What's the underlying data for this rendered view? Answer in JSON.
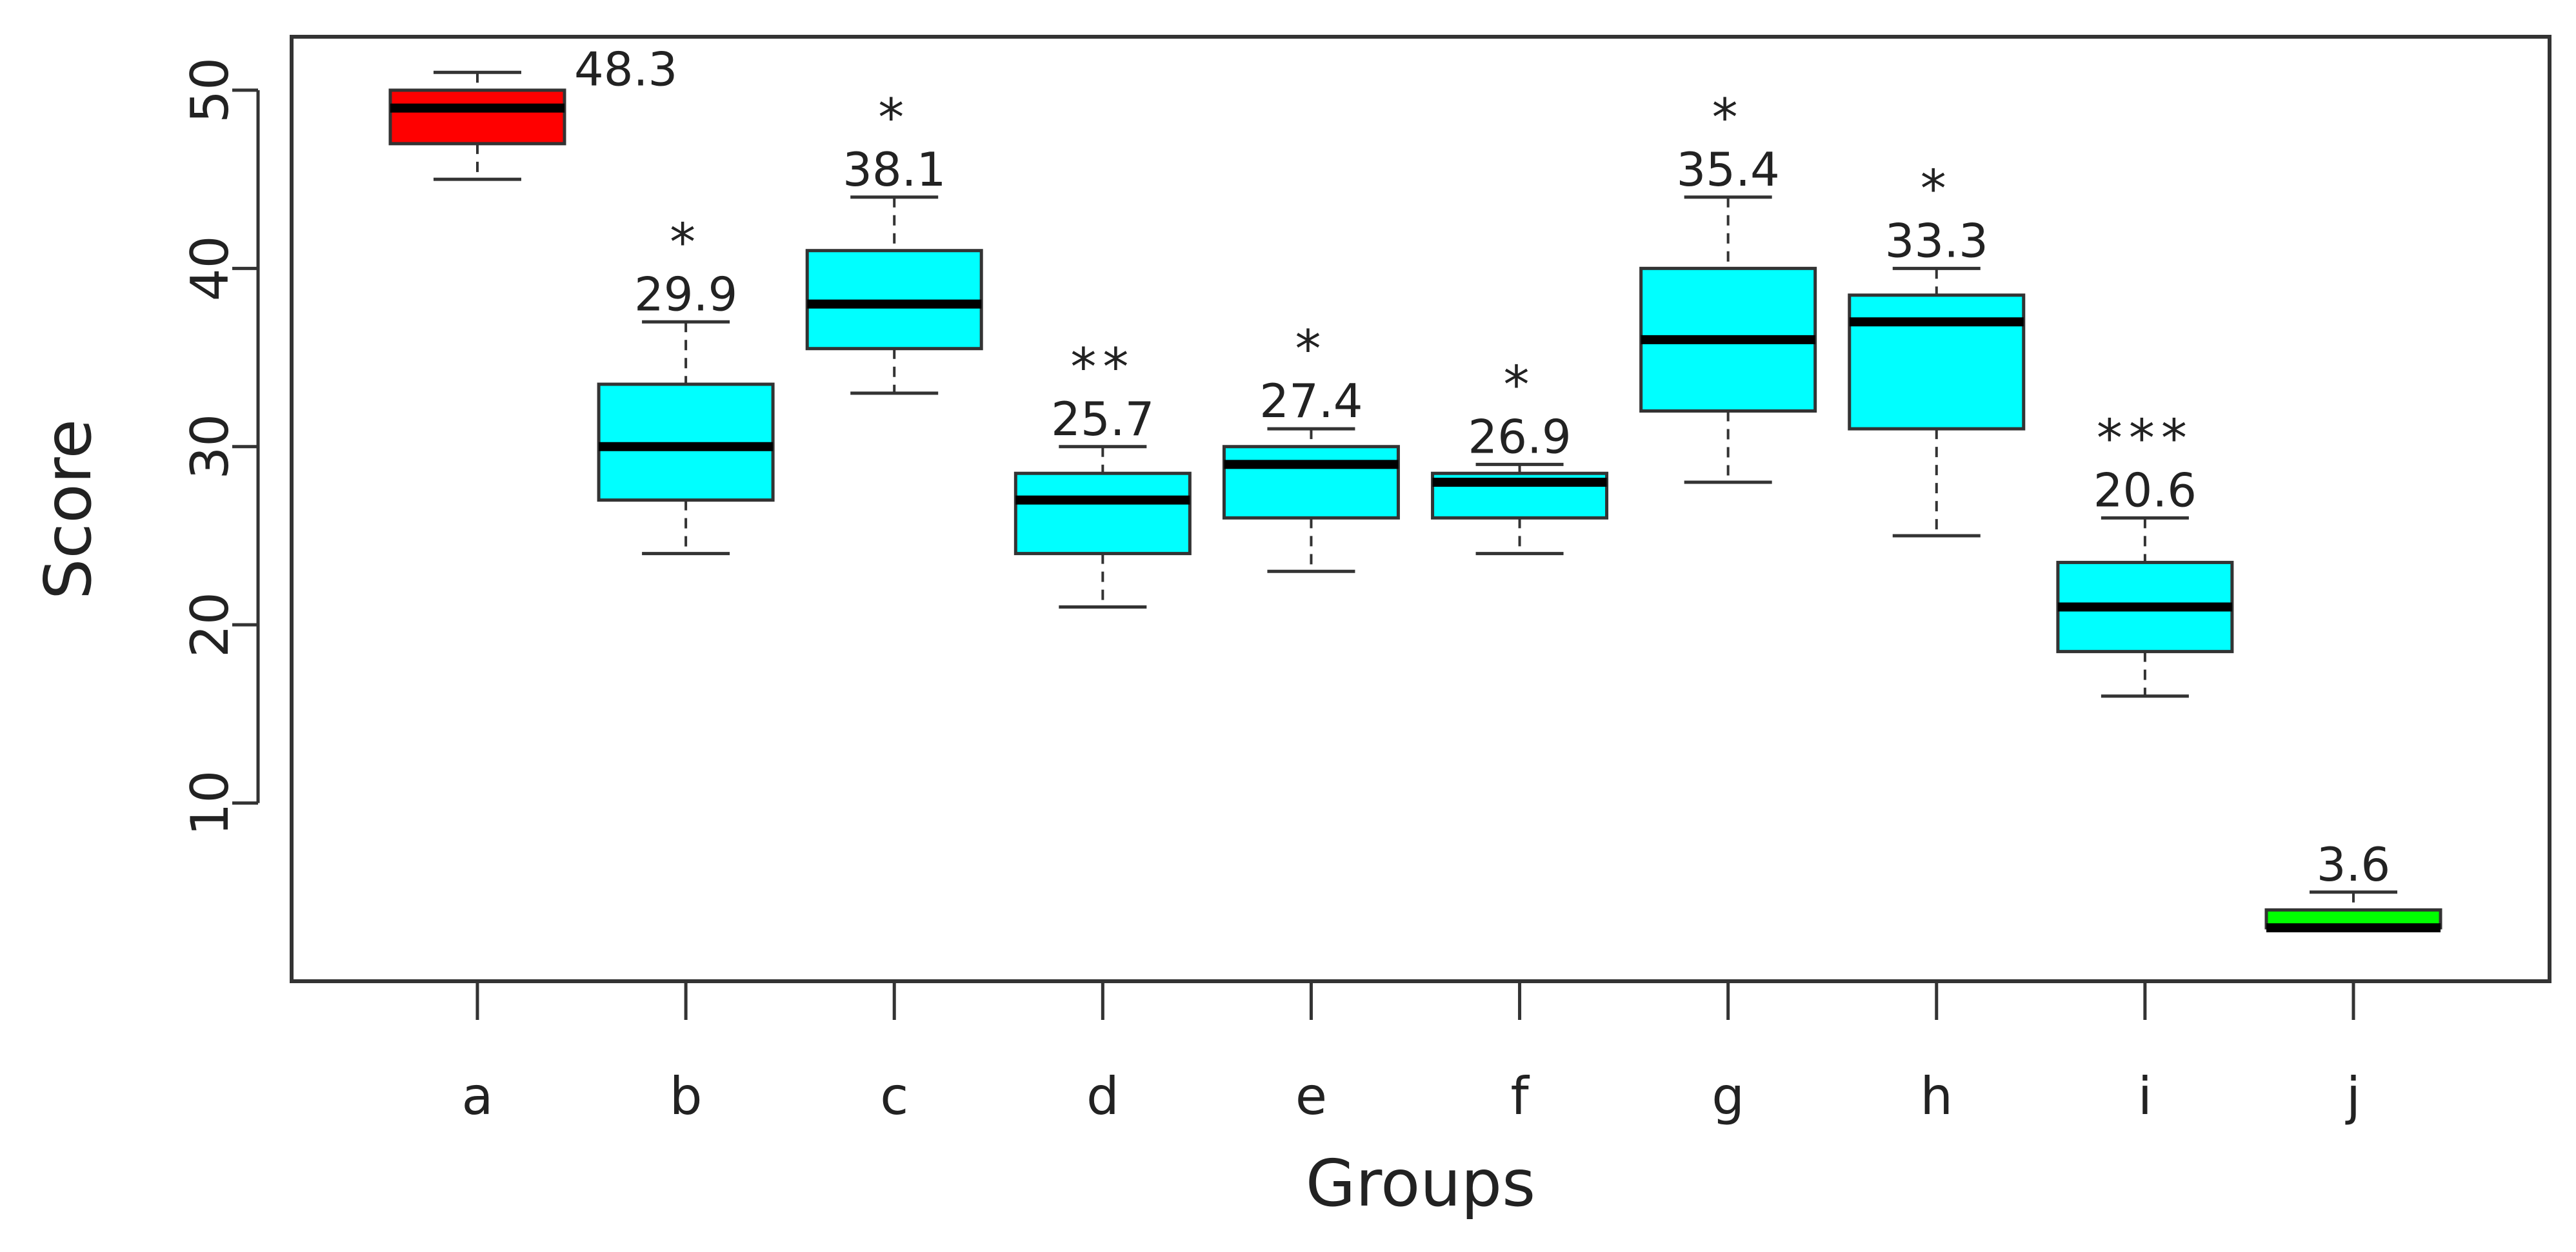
{
  "chart_data": {
    "type": "box",
    "title": "",
    "xlabel": "Groups",
    "ylabel": "Score",
    "ylim": [
      0,
      53
    ],
    "yticks": [
      10,
      20,
      30,
      40,
      50
    ],
    "grid": false,
    "legend": "none",
    "categories": [
      "a",
      "b",
      "c",
      "d",
      "e",
      "f",
      "g",
      "h",
      "i",
      "j"
    ],
    "boxes": [
      {
        "group": "a",
        "whisker_low": 45,
        "q1": 47,
        "median": 49,
        "q3": 50,
        "whisker_high": 51,
        "mean_label": "48.3",
        "significance": "",
        "color": "#ff0000"
      },
      {
        "group": "b",
        "whisker_low": 24,
        "q1": 27,
        "median": 30,
        "q3": 33.5,
        "whisker_high": 37,
        "mean_label": "29.9",
        "significance": "*",
        "color": "#00ffff"
      },
      {
        "group": "c",
        "whisker_low": 33,
        "q1": 35.5,
        "median": 38,
        "q3": 41,
        "whisker_high": 44,
        "mean_label": "38.1",
        "significance": "*",
        "color": "#00ffff"
      },
      {
        "group": "d",
        "whisker_low": 21,
        "q1": 24,
        "median": 27,
        "q3": 28.5,
        "whisker_high": 30,
        "mean_label": "25.7",
        "significance": "**",
        "color": "#00ffff"
      },
      {
        "group": "e",
        "whisker_low": 23,
        "q1": 26,
        "median": 29,
        "q3": 30,
        "whisker_high": 31,
        "mean_label": "27.4",
        "significance": "*",
        "color": "#00ffff"
      },
      {
        "group": "f",
        "whisker_low": 24,
        "q1": 26,
        "median": 28,
        "q3": 28.5,
        "whisker_high": 29,
        "mean_label": "26.9",
        "significance": "*",
        "color": "#00ffff"
      },
      {
        "group": "g",
        "whisker_low": 28,
        "q1": 32,
        "median": 36,
        "q3": 40,
        "whisker_high": 44,
        "mean_label": "35.4",
        "significance": "*",
        "color": "#00ffff"
      },
      {
        "group": "h",
        "whisker_low": 25,
        "q1": 31,
        "median": 37,
        "q3": 38.5,
        "whisker_high": 40,
        "mean_label": "33.3",
        "significance": "*",
        "color": "#00ffff"
      },
      {
        "group": "i",
        "whisker_low": 16,
        "q1": 18.5,
        "median": 21,
        "q3": 23.5,
        "whisker_high": 26,
        "mean_label": "20.6",
        "significance": "***",
        "color": "#00ffff"
      },
      {
        "group": "j",
        "whisker_low": 3,
        "q1": 3,
        "median": 3,
        "q3": 4,
        "whisker_high": 5,
        "mean_label": "3.6",
        "significance": "",
        "color": "#00ff00"
      }
    ]
  }
}
